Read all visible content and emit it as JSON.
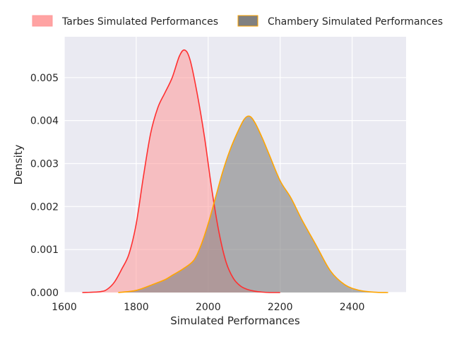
{
  "chart_data": {
    "type": "area",
    "xlabel": "Simulated Performances",
    "ylabel": "Density",
    "xlim": [
      1600,
      2550
    ],
    "ylim": [
      0,
      0.00595
    ],
    "xticks": [
      1600,
      1800,
      2000,
      2200,
      2400
    ],
    "xtick_labels": [
      "1600",
      "1800",
      "2000",
      "2200",
      "2400"
    ],
    "yticks": [
      0,
      0.001,
      0.002,
      0.003,
      0.004,
      0.005
    ],
    "ytick_labels": [
      "0.000",
      "0.001",
      "0.002",
      "0.003",
      "0.004",
      "0.005"
    ],
    "grid": true,
    "legend_position": "top",
    "background_color": "#eaeaf2",
    "series": [
      {
        "name": "Tarbes Simulated Performances",
        "line_color": "#ff3030",
        "fill_color": "#ff9999",
        "x": [
          1650,
          1700,
          1720,
          1740,
          1760,
          1780,
          1800,
          1820,
          1840,
          1860,
          1880,
          1900,
          1920,
          1935,
          1950,
          1970,
          1990,
          2010,
          2030,
          2050,
          2070,
          2090,
          2110,
          2130,
          2150,
          2170,
          2200
        ],
        "y": [
          0.0,
          2e-05,
          8e-05,
          0.00025,
          0.00055,
          0.0009,
          0.0016,
          0.0027,
          0.0037,
          0.0043,
          0.00465,
          0.005,
          0.0055,
          0.00564,
          0.0054,
          0.0046,
          0.0036,
          0.0024,
          0.0014,
          0.0007,
          0.00033,
          0.00015,
          7e-05,
          3e-05,
          1e-05,
          0.0,
          0.0
        ]
      },
      {
        "name": "Chambery Simulated Performances",
        "line_color": "#ffa500",
        "fill_color": "#808080",
        "x": [
          1750,
          1800,
          1850,
          1880,
          1900,
          1930,
          1960,
          1980,
          2000,
          2020,
          2040,
          2060,
          2080,
          2100,
          2115,
          2130,
          2150,
          2170,
          2200,
          2230,
          2260,
          2300,
          2340,
          2380,
          2420,
          2460,
          2500
        ],
        "y": [
          0.0,
          5e-05,
          0.0002,
          0.0003,
          0.0004,
          0.00055,
          0.00075,
          0.0011,
          0.0016,
          0.0022,
          0.0028,
          0.0033,
          0.0037,
          0.00403,
          0.0041,
          0.00395,
          0.0036,
          0.0032,
          0.0026,
          0.0022,
          0.0017,
          0.0011,
          0.0005,
          0.00018,
          5e-05,
          1e-05,
          0.0
        ]
      }
    ]
  }
}
